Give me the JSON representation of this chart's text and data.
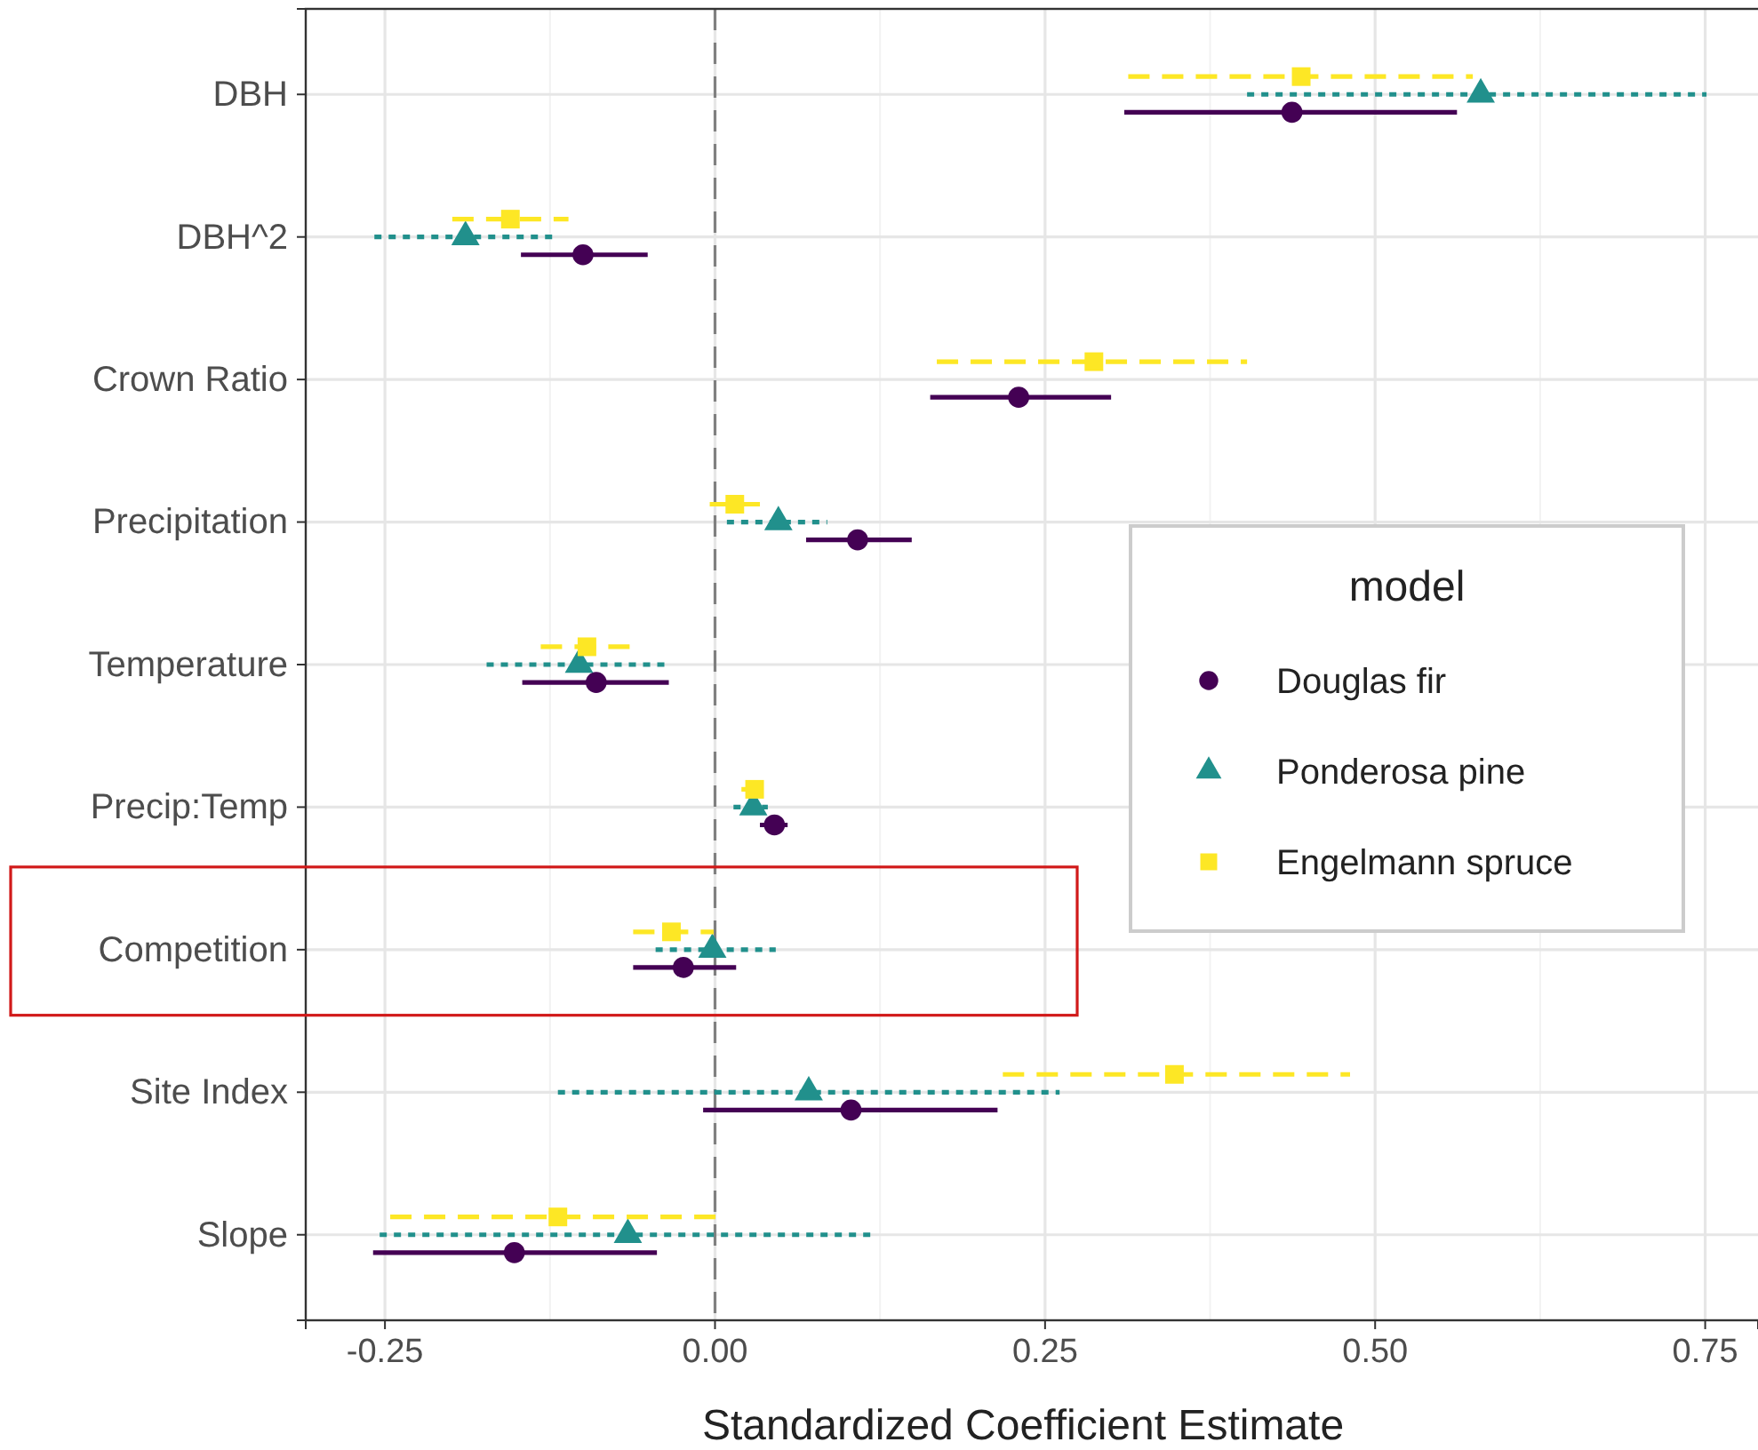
{
  "chart_data": {
    "type": "scatter",
    "orientation": "horizontal",
    "xlabel": "Standardized Coefficient Estimate",
    "legend_title": "model",
    "legend": "right",
    "grid": true,
    "categories": [
      "DBH",
      "DBH^2",
      "Crown Ratio",
      "Precipitation",
      "Temperature",
      "Precip:Temp",
      "Competition",
      "Site Index",
      "Slope"
    ],
    "xlim": [
      -0.31,
      0.79
    ],
    "xticks": [
      {
        "value": -0.25,
        "label": "-0.25"
      },
      {
        "value": 0,
        "label": "0.00"
      },
      {
        "value": 0.25,
        "label": "0.25"
      },
      {
        "value": 0.5,
        "label": "0.50"
      },
      {
        "value": 0.75,
        "label": "0.75"
      }
    ],
    "ref_lines": [
      {
        "axis": "x",
        "value": 0,
        "color": "#808080",
        "line_style": "dashed"
      }
    ],
    "series": [
      {
        "name": "Douglas fir",
        "color": "#440154",
        "marker": "circle",
        "line_style": "solid",
        "values": [
          0.437,
          -0.1,
          0.23,
          0.108,
          -0.09,
          0.045,
          -0.024,
          0.103,
          -0.152
        ],
        "errors": [
          [
            0.31,
            0.562
          ],
          [
            -0.147,
            -0.051
          ],
          [
            0.163,
            0.3
          ],
          [
            0.069,
            0.149
          ],
          [
            -0.146,
            -0.035
          ],
          [
            0.034,
            0.055
          ],
          [
            -0.062,
            0.016
          ],
          [
            -0.009,
            0.214
          ],
          [
            -0.259,
            -0.044
          ]
        ]
      },
      {
        "name": "Ponderosa pine",
        "color": "#21908c",
        "marker": "triangle",
        "line_style": "dotted",
        "values": [
          0.58,
          -0.189,
          null,
          0.048,
          -0.103,
          0.029,
          -0.002,
          0.071,
          -0.066
        ],
        "errors": [
          [
            0.403,
            0.751
          ],
          [
            -0.258,
            -0.123
          ],
          null,
          [
            0.009,
            0.085
          ],
          [
            -0.173,
            -0.034
          ],
          [
            0.014,
            0.04
          ],
          [
            -0.045,
            0.046
          ],
          [
            -0.119,
            0.261
          ],
          [
            -0.254,
            0.122
          ]
        ]
      },
      {
        "name": "Engelmann spruce",
        "color": "#fde725",
        "marker": "square",
        "line_style": "dashed",
        "values": [
          0.444,
          -0.155,
          0.287,
          0.015,
          -0.097,
          0.03,
          -0.033,
          0.348,
          -0.119
        ],
        "errors": [
          [
            0.313,
            0.574
          ],
          [
            -0.199,
            -0.111
          ],
          [
            0.168,
            0.403
          ],
          [
            -0.004,
            0.034
          ],
          [
            -0.132,
            -0.063
          ],
          [
            0.02,
            0.04
          ],
          [
            -0.062,
            -0.001
          ],
          [
            0.218,
            0.481
          ],
          [
            -0.246,
            0.005
          ]
        ]
      }
    ]
  }
}
